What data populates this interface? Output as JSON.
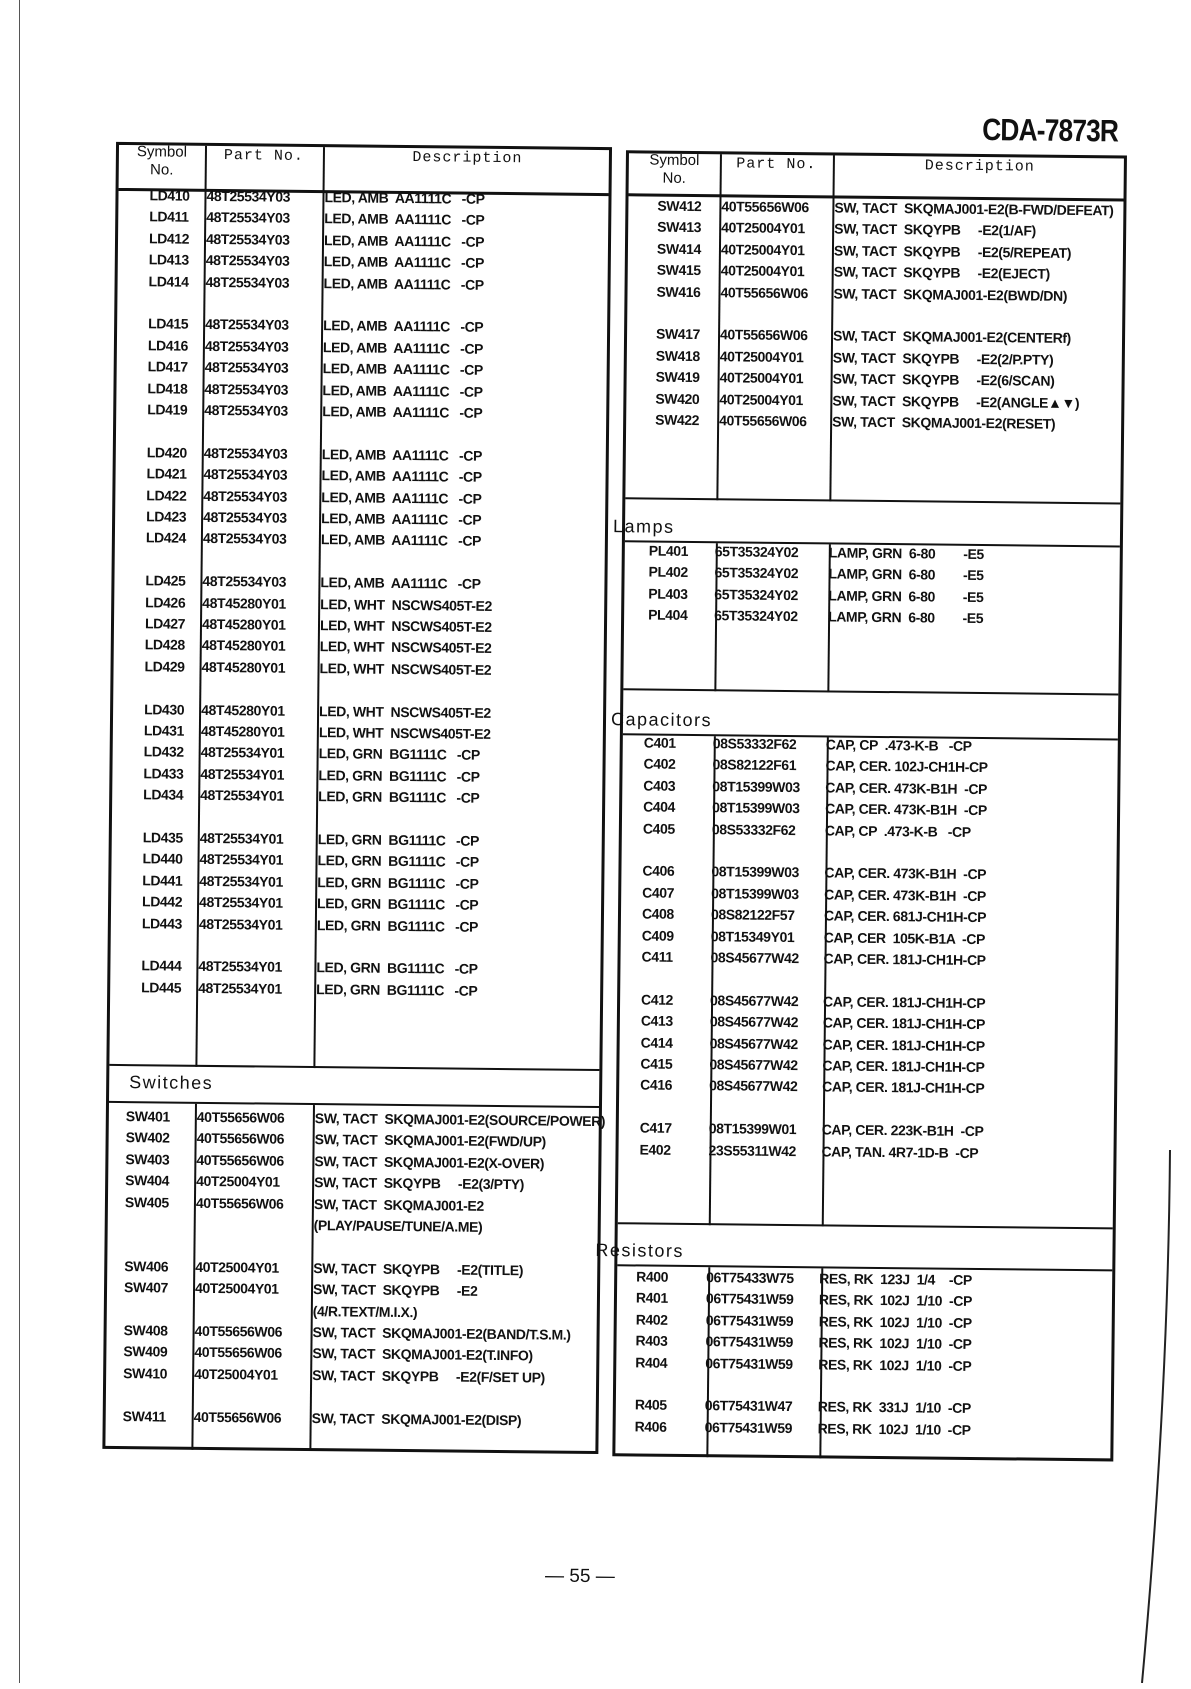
{
  "page": {
    "model": "CDA-7873R",
    "page_number": "— 55 —"
  },
  "headers": {
    "symbol_line1": "Symbol",
    "symbol_line2": "No.",
    "part_no": "Part No.",
    "description": "Description"
  },
  "left": {
    "leds": {
      "groups": [
        [
          {
            "symbol": "LD410",
            "part": "48T25534Y03",
            "desc": "LED, AMB  AA1111C   -CP"
          },
          {
            "symbol": "LD411",
            "part": "48T25534Y03",
            "desc": "LED, AMB  AA1111C   -CP"
          },
          {
            "symbol": "LD412",
            "part": "48T25534Y03",
            "desc": "LED, AMB  AA1111C   -CP"
          },
          {
            "symbol": "LD413",
            "part": "48T25534Y03",
            "desc": "LED, AMB  AA1111C   -CP"
          },
          {
            "symbol": "LD414",
            "part": "48T25534Y03",
            "desc": "LED, AMB  AA1111C   -CP"
          }
        ],
        [
          {
            "symbol": "LD415",
            "part": "48T25534Y03",
            "desc": "LED, AMB  AA1111C   -CP"
          },
          {
            "symbol": "LD416",
            "part": "48T25534Y03",
            "desc": "LED, AMB  AA1111C   -CP"
          },
          {
            "symbol": "LD417",
            "part": "48T25534Y03",
            "desc": "LED, AMB  AA1111C   -CP"
          },
          {
            "symbol": "LD418",
            "part": "48T25534Y03",
            "desc": "LED, AMB  AA1111C   -CP"
          },
          {
            "symbol": "LD419",
            "part": "48T25534Y03",
            "desc": "LED, AMB  AA1111C   -CP"
          }
        ],
        [
          {
            "symbol": "LD420",
            "part": "48T25534Y03",
            "desc": "LED, AMB  AA1111C   -CP"
          },
          {
            "symbol": "LD421",
            "part": "48T25534Y03",
            "desc": "LED, AMB  AA1111C   -CP"
          },
          {
            "symbol": "LD422",
            "part": "48T25534Y03",
            "desc": "LED, AMB  AA1111C   -CP"
          },
          {
            "symbol": "LD423",
            "part": "48T25534Y03",
            "desc": "LED, AMB  AA1111C   -CP"
          },
          {
            "symbol": "LD424",
            "part": "48T25534Y03",
            "desc": "LED, AMB  AA1111C   -CP"
          }
        ],
        [
          {
            "symbol": "LD425",
            "part": "48T25534Y03",
            "desc": "LED, AMB  AA1111C   -CP"
          },
          {
            "symbol": "LD426",
            "part": "48T45280Y01",
            "desc": "LED, WHT  NSCWS405T-E2"
          },
          {
            "symbol": "LD427",
            "part": "48T45280Y01",
            "desc": "LED, WHT  NSCWS405T-E2"
          },
          {
            "symbol": "LD428",
            "part": "48T45280Y01",
            "desc": "LED, WHT  NSCWS405T-E2"
          },
          {
            "symbol": "LD429",
            "part": "48T45280Y01",
            "desc": "LED, WHT  NSCWS405T-E2"
          }
        ],
        [
          {
            "symbol": "LD430",
            "part": "48T45280Y01",
            "desc": "LED, WHT  NSCWS405T-E2"
          },
          {
            "symbol": "LD431",
            "part": "48T45280Y01",
            "desc": "LED, WHT  NSCWS405T-E2"
          },
          {
            "symbol": "LD432",
            "part": "48T25534Y01",
            "desc": "LED, GRN  BG1111C   -CP"
          },
          {
            "symbol": "LD433",
            "part": "48T25534Y01",
            "desc": "LED, GRN  BG1111C   -CP"
          },
          {
            "symbol": "LD434",
            "part": "48T25534Y01",
            "desc": "LED, GRN  BG1111C   -CP"
          }
        ],
        [
          {
            "symbol": "LD435",
            "part": "48T25534Y01",
            "desc": "LED, GRN  BG1111C   -CP"
          },
          {
            "symbol": "LD440",
            "part": "48T25534Y01",
            "desc": "LED, GRN  BG1111C   -CP"
          },
          {
            "symbol": "LD441",
            "part": "48T25534Y01",
            "desc": "LED, GRN  BG1111C   -CP"
          },
          {
            "symbol": "LD442",
            "part": "48T25534Y01",
            "desc": "LED, GRN  BG1111C   -CP"
          },
          {
            "symbol": "LD443",
            "part": "48T25534Y01",
            "desc": "LED, GRN  BG1111C   -CP"
          }
        ],
        [
          {
            "symbol": "LD444",
            "part": "48T25534Y01",
            "desc": "LED, GRN  BG1111C   -CP"
          },
          {
            "symbol": "LD445",
            "part": "48T25534Y01",
            "desc": "LED, GRN  BG1111C   -CP"
          }
        ]
      ]
    },
    "switches": {
      "title": "Switches",
      "groups": [
        [
          {
            "symbol": "SW401",
            "part": "40T55656W06",
            "desc": "SW, TACT  SKQMAJ001-E2(SOURCE/POWER)"
          },
          {
            "symbol": "SW402",
            "part": "40T55656W06",
            "desc": "SW, TACT  SKQMAJ001-E2(FWD/UP)"
          },
          {
            "symbol": "SW403",
            "part": "40T55656W06",
            "desc": "SW, TACT  SKQMAJ001-E2(X-OVER)"
          },
          {
            "symbol": "SW404",
            "part": "40T25004Y01",
            "desc": "SW, TACT  SKQYPB     -E2(3/PTY)"
          },
          {
            "symbol": "SW405",
            "part": "40T55656W06",
            "desc": "SW, TACT  SKQMAJ001-E2",
            "desc2": "(PLAY/PAUSE/TUNE/A.ME)"
          }
        ],
        [
          {
            "symbol": "SW406",
            "part": "40T25004Y01",
            "desc": "SW, TACT  SKQYPB     -E2(TITLE)"
          },
          {
            "symbol": "SW407",
            "part": "40T25004Y01",
            "desc": "SW, TACT  SKQYPB     -E2",
            "desc2": "(4/R.TEXT/M.I.X.)"
          },
          {
            "symbol": "SW408",
            "part": "40T55656W06",
            "desc": "SW, TACT  SKQMAJ001-E2(BAND/T.S.M.)"
          },
          {
            "symbol": "SW409",
            "part": "40T55656W06",
            "desc": "SW, TACT  SKQMAJ001-E2(T.INFO)"
          },
          {
            "symbol": "SW410",
            "part": "40T25004Y01",
            "desc": "SW, TACT  SKQYPB     -E2(F/SET UP)"
          }
        ],
        [
          {
            "symbol": "SW411",
            "part": "40T55656W06",
            "desc": "SW, TACT  SKQMAJ001-E2(DISP)"
          }
        ]
      ]
    }
  },
  "right": {
    "switches": {
      "groups": [
        [
          {
            "symbol": "SW412",
            "part": "40T55656W06",
            "desc": "SW, TACT  SKQMAJ001-E2(B-FWD/DEFEAT)"
          },
          {
            "symbol": "SW413",
            "part": "40T25004Y01",
            "desc": "SW, TACT  SKQYPB     -E2(1/AF)"
          },
          {
            "symbol": "SW414",
            "part": "40T25004Y01",
            "desc": "SW, TACT  SKQYPB     -E2(5/REPEAT)"
          },
          {
            "symbol": "SW415",
            "part": "40T25004Y01",
            "desc": "SW, TACT  SKQYPB     -E2(EJECT)"
          },
          {
            "symbol": "SW416",
            "part": "40T55656W06",
            "desc": "SW, TACT  SKQMAJ001-E2(BWD/DN)"
          }
        ],
        [
          {
            "symbol": "SW417",
            "part": "40T55656W06",
            "desc": "SW, TACT  SKQMAJ001-E2(CENTERf)"
          },
          {
            "symbol": "SW418",
            "part": "40T25004Y01",
            "desc": "SW, TACT  SKQYPB     -E2(2/P.PTY)"
          },
          {
            "symbol": "SW419",
            "part": "40T25004Y01",
            "desc": "SW, TACT  SKQYPB     -E2(6/SCAN)"
          },
          {
            "symbol": "SW420",
            "part": "40T25004Y01",
            "desc": "SW, TACT  SKQYPB     -E2(ANGLE▲▼)"
          },
          {
            "symbol": "SW422",
            "part": "40T55656W06",
            "desc": "SW, TACT  SKQMAJ001-E2(RESET)"
          }
        ]
      ]
    },
    "lamps": {
      "title": "Lamps",
      "groups": [
        [
          {
            "symbol": "PL401",
            "part": "65T35324Y02",
            "desc": "LAMP, GRN  6-80        -E5"
          },
          {
            "symbol": "PL402",
            "part": "65T35324Y02",
            "desc": "LAMP, GRN  6-80        -E5"
          },
          {
            "symbol": "PL403",
            "part": "65T35324Y02",
            "desc": "LAMP, GRN  6-80        -E5"
          },
          {
            "symbol": "PL404",
            "part": "65T35324Y02",
            "desc": "LAMP, GRN  6-80        -E5"
          }
        ]
      ]
    },
    "capacitors": {
      "title": "Capacitors",
      "groups": [
        [
          {
            "symbol": "C401",
            "part": "08S53332F62",
            "desc": "CAP, CP  .473-K-B   -CP"
          },
          {
            "symbol": "C402",
            "part": "08S82122F61",
            "desc": "CAP, CER. 102J-CH1H-CP"
          },
          {
            "symbol": "C403",
            "part": "08T15399W03",
            "desc": "CAP, CER. 473K-B1H  -CP"
          },
          {
            "symbol": "C404",
            "part": "08T15399W03",
            "desc": "CAP, CER. 473K-B1H  -CP"
          },
          {
            "symbol": "C405",
            "part": "08S53332F62",
            "desc": "CAP, CP  .473-K-B   -CP"
          }
        ],
        [
          {
            "symbol": "C406",
            "part": "08T15399W03",
            "desc": "CAP, CER. 473K-B1H  -CP"
          },
          {
            "symbol": "C407",
            "part": "08T15399W03",
            "desc": "CAP, CER. 473K-B1H  -CP"
          },
          {
            "symbol": "C408",
            "part": "08S82122F57",
            "desc": "CAP, CER. 681J-CH1H-CP"
          },
          {
            "symbol": "C409",
            "part": "08T15349Y01",
            "desc": "CAP, CER  105K-B1A  -CP"
          },
          {
            "symbol": "C411",
            "part": "08S45677W42",
            "desc": "CAP, CER. 181J-CH1H-CP"
          }
        ],
        [
          {
            "symbol": "C412",
            "part": "08S45677W42",
            "desc": "CAP, CER. 181J-CH1H-CP"
          },
          {
            "symbol": "C413",
            "part": "08S45677W42",
            "desc": "CAP, CER. 181J-CH1H-CP"
          },
          {
            "symbol": "C414",
            "part": "08S45677W42",
            "desc": "CAP, CER. 181J-CH1H-CP"
          },
          {
            "symbol": "C415",
            "part": "08S45677W42",
            "desc": "CAP, CER. 181J-CH1H-CP"
          },
          {
            "symbol": "C416",
            "part": "08S45677W42",
            "desc": "CAP, CER. 181J-CH1H-CP"
          }
        ],
        [
          {
            "symbol": "C417",
            "part": "08T15399W01",
            "desc": "CAP, CER. 223K-B1H  -CP"
          },
          {
            "symbol": "E402",
            "part": "23S55311W42",
            "desc": "CAP, TAN. 4R7-1D-B  -CP"
          }
        ]
      ]
    },
    "resistors": {
      "title": "Resistors",
      "groups": [
        [
          {
            "symbol": "R400",
            "part": "06T75433W75",
            "desc": "RES, RK  123J  1/4    -CP"
          },
          {
            "symbol": "R401",
            "part": "06T75431W59",
            "desc": "RES, RK  102J  1/10  -CP"
          },
          {
            "symbol": "R402",
            "part": "06T75431W59",
            "desc": "RES, RK  102J  1/10  -CP"
          },
          {
            "symbol": "R403",
            "part": "06T75431W59",
            "desc": "RES, RK  102J  1/10  -CP"
          },
          {
            "symbol": "R404",
            "part": "06T75431W59",
            "desc": "RES, RK  102J  1/10  -CP"
          }
        ],
        [
          {
            "symbol": "R405",
            "part": "06T75431W47",
            "desc": "RES, RK  331J  1/10  -CP"
          },
          {
            "symbol": "R406",
            "part": "06T75431W59",
            "desc": "RES, RK  102J  1/10  -CP"
          }
        ]
      ]
    }
  }
}
